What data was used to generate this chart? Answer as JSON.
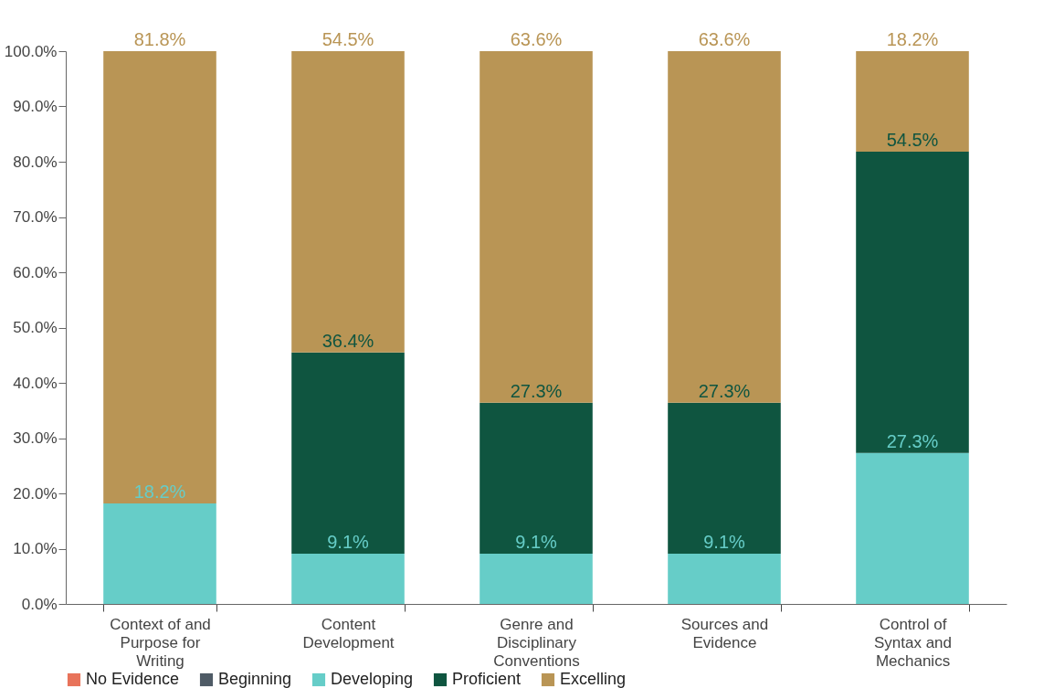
{
  "chart_data": {
    "type": "bar",
    "stacked": true,
    "categories": [
      "Context of and Purpose for Writing",
      "Content Development",
      "Genre and Disciplinary Conventions",
      "Sources and Evidence",
      "Control of Syntax and Mechanics"
    ],
    "series": [
      {
        "name": "No Evidence",
        "color": "#e8735a",
        "values": [
          0,
          0,
          0,
          0,
          0
        ]
      },
      {
        "name": "Beginning",
        "color": "#4f5b66",
        "values": [
          0,
          0,
          0,
          0,
          0
        ]
      },
      {
        "name": "Developing",
        "color": "#66cdc8",
        "values": [
          18.2,
          9.1,
          9.1,
          9.1,
          27.3
        ],
        "value_labels": [
          "18.2%",
          "9.1%",
          "9.1%",
          "9.1%",
          "27.3%"
        ]
      },
      {
        "name": "Proficient",
        "color": "#0f5540",
        "values": [
          0,
          36.4,
          27.3,
          27.3,
          54.5
        ],
        "value_labels": [
          null,
          "36.4%",
          "27.3%",
          "27.3%",
          "54.5%"
        ]
      },
      {
        "name": "Excelling",
        "color": "#b99555",
        "values": [
          81.8,
          54.5,
          63.6,
          63.6,
          18.2
        ],
        "value_labels": [
          "81.8%",
          "54.5%",
          "63.6%",
          "63.6%",
          "18.2%"
        ]
      }
    ],
    "ylim": [
      0,
      100
    ],
    "yticks": [
      {
        "value": 0,
        "label": "0.0%"
      },
      {
        "value": 10,
        "label": "10.0%"
      },
      {
        "value": 20,
        "label": "20.0%"
      },
      {
        "value": 30,
        "label": "30.0%"
      },
      {
        "value": 40,
        "label": "40.0%"
      },
      {
        "value": 50,
        "label": "50.0%"
      },
      {
        "value": 60,
        "label": "60.0%"
      },
      {
        "value": 70,
        "label": "70.0%"
      },
      {
        "value": 80,
        "label": "80.0%"
      },
      {
        "value": 90,
        "label": "90.0%"
      },
      {
        "value": 100,
        "label": "100.0%"
      }
    ],
    "grid": false,
    "legend": "bottom"
  }
}
